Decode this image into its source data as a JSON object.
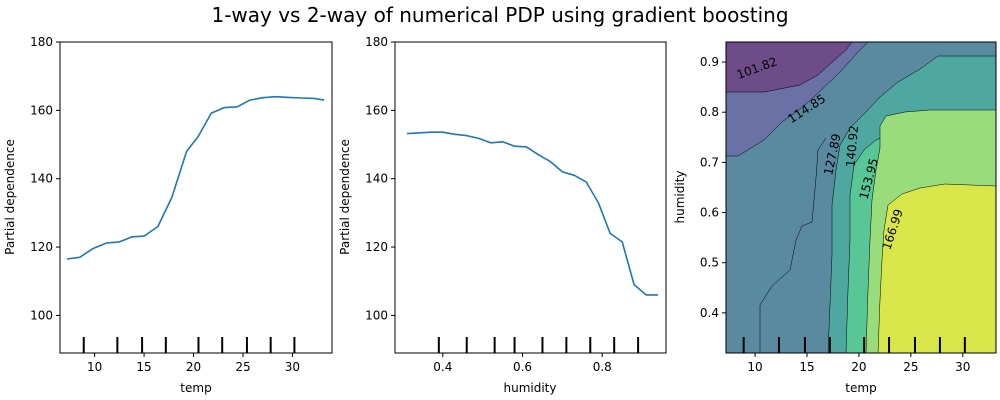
{
  "figure": {
    "title": "1-way vs 2-way of numerical PDP using gradient boosting"
  },
  "colors": {
    "line": "#1f77b4",
    "axis": "#000000",
    "contour_levels": [
      "#6d4c89",
      "#6a71a5",
      "#5a8aa0",
      "#4ea7a0",
      "#58c696",
      "#98dc7c",
      "#d9e64a"
    ]
  },
  "chart_data": [
    {
      "type": "line",
      "xlabel": "temp",
      "ylabel": "Partial dependence",
      "xlim": [
        6.5,
        34.0
      ],
      "ylim": [
        89,
        180
      ],
      "xticks": [
        10,
        15,
        20,
        25,
        30
      ],
      "yticks": [
        100,
        120,
        140,
        160,
        180
      ],
      "deciles": [
        8.9,
        12.3,
        14.8,
        17.2,
        20.5,
        22.9,
        25.4,
        27.8,
        30.2
      ],
      "x": [
        7.2,
        8.5,
        9.8,
        11.2,
        12.5,
        13.8,
        15.0,
        16.4,
        17.8,
        19.3,
        20.5,
        21.8,
        23.1,
        24.4,
        25.7,
        27.0,
        28.3,
        29.6,
        30.9,
        32.2,
        33.2
      ],
      "y": [
        116.5,
        117.0,
        119.5,
        121.2,
        121.5,
        123.0,
        123.2,
        126.0,
        134.5,
        148.0,
        152.5,
        159.2,
        160.8,
        161.0,
        163.0,
        163.7,
        164.0,
        163.8,
        163.6,
        163.5,
        163.0
      ]
    },
    {
      "type": "line",
      "xlabel": "humidity",
      "ylabel": "Partial dependence",
      "xlim": [
        0.28,
        0.96
      ],
      "ylim": [
        89,
        180
      ],
      "xticks": [
        0.4,
        0.6,
        0.8
      ],
      "xtick_labels": [
        "0.4",
        "0.6",
        "0.8"
      ],
      "yticks": [
        100,
        120,
        140,
        160,
        180
      ],
      "deciles": [
        0.39,
        0.46,
        0.53,
        0.58,
        0.65,
        0.71,
        0.77,
        0.83,
        0.89
      ],
      "x": [
        0.31,
        0.34,
        0.37,
        0.4,
        0.43,
        0.46,
        0.49,
        0.52,
        0.55,
        0.58,
        0.61,
        0.64,
        0.67,
        0.7,
        0.73,
        0.76,
        0.79,
        0.82,
        0.85,
        0.88,
        0.91,
        0.94
      ],
      "y": [
        153.2,
        153.4,
        153.6,
        153.6,
        153.0,
        152.6,
        151.8,
        150.5,
        150.8,
        149.5,
        149.3,
        147.0,
        145.0,
        142.0,
        141.0,
        139.0,
        133.0,
        124.0,
        121.5,
        109.0,
        106.0,
        106.0
      ]
    },
    {
      "type": "heatmap",
      "xlabel": "temp",
      "ylabel": "humidity",
      "xlim": [
        7.2,
        33.2
      ],
      "ylim": [
        0.32,
        0.94
      ],
      "xticks": [
        10,
        15,
        20,
        25,
        30
      ],
      "yticks": [
        0.4,
        0.5,
        0.6,
        0.7,
        0.8,
        0.9
      ],
      "ytick_labels": [
        "0.4",
        "0.5",
        "0.6",
        "0.7",
        "0.8",
        "0.9"
      ],
      "deciles": [
        8.9,
        12.3,
        14.8,
        17.2,
        20.5,
        22.9,
        25.4,
        27.8,
        30.2
      ],
      "contour_labels": [
        {
          "text": "101.82",
          "temp": 10.2,
          "humidity": 0.887,
          "angle": -20
        },
        {
          "text": "114.85",
          "temp": 15.0,
          "humidity": 0.806,
          "angle": -33
        },
        {
          "text": "127.89",
          "temp": 17.5,
          "humidity": 0.716,
          "angle": -78
        },
        {
          "text": "140.92",
          "temp": 19.4,
          "humidity": 0.732,
          "angle": -85
        },
        {
          "text": "153.95",
          "temp": 21.0,
          "humidity": 0.667,
          "angle": -75
        },
        {
          "text": "166.99",
          "temp": 23.3,
          "humidity": 0.566,
          "angle": -72
        }
      ]
    }
  ]
}
